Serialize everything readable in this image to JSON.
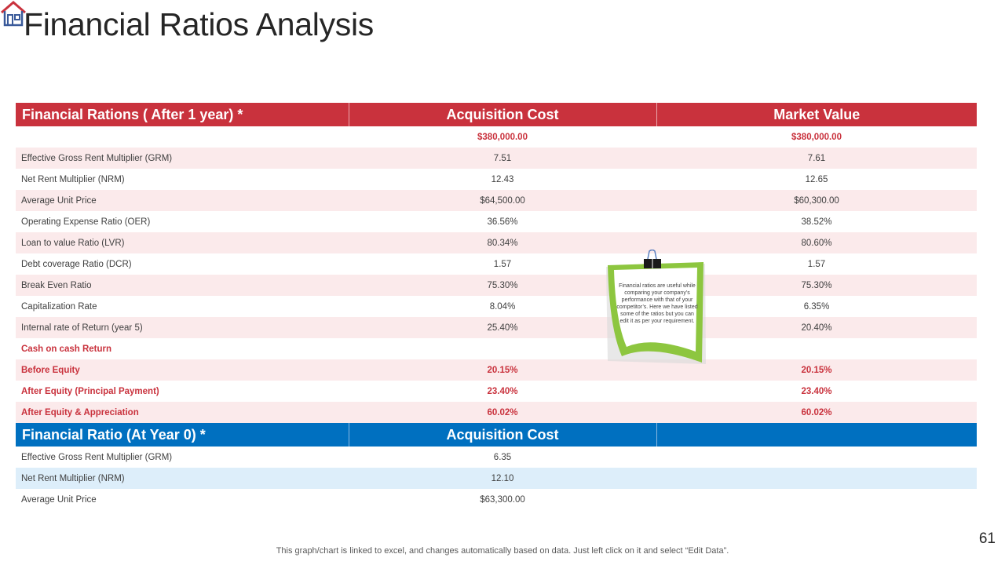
{
  "title": "Financial Ratios Analysis",
  "table1": {
    "headers": [
      "Financial Rations ( After 1 year) *",
      "Acquisition Cost",
      "Market Value"
    ],
    "rows": [
      {
        "label": "",
        "acq": "$380,000.00",
        "mkt": "$380,000.00"
      },
      {
        "label": "Effective Gross Rent Multiplier (GRM)",
        "acq": "7.51",
        "mkt": "7.61"
      },
      {
        "label": "Net Rent Multiplier (NRM)",
        "acq": "12.43",
        "mkt": "12.65"
      },
      {
        "label": "Average Unit Price",
        "acq": "$64,500.00",
        "mkt": "$60,300.00"
      },
      {
        "label": "Operating Expense Ratio (OER)",
        "acq": "36.56%",
        "mkt": "38.52%"
      },
      {
        "label": "Loan to value Ratio (LVR)",
        "acq": "80.34%",
        "mkt": "80.60%"
      },
      {
        "label": "Debt coverage Ratio (DCR)",
        "acq": "1.57",
        "mkt": "1.57"
      },
      {
        "label": "Break Even Ratio",
        "acq": "75.30%",
        "mkt": "75.30%"
      },
      {
        "label": "Capitalization Rate",
        "acq": "8.04%",
        "mkt": "6.35%"
      },
      {
        "label": "Internal rate of Return (year 5)",
        "acq": "25.40%",
        "mkt": "20.40%"
      },
      {
        "label": "Cash on cash Return",
        "acq": "",
        "mkt": ""
      },
      {
        "label": "Before Equity",
        "acq": "20.15%",
        "mkt": "20.15%"
      },
      {
        "label": "After Equity  (Principal Payment)",
        "acq": "23.40%",
        "mkt": "23.40%"
      },
      {
        "label": "After Equity  & Appreciation",
        "acq": "60.02%",
        "mkt": "60.02%"
      }
    ]
  },
  "table2": {
    "headers": [
      "Financial Ratio (At Year 0) *",
      "Acquisition Cost",
      ""
    ],
    "rows": [
      {
        "label": "Effective Gross Rent Multiplier (GRM)",
        "acq": "6.35",
        "mkt": ""
      },
      {
        "label": "Net Rent Multiplier (NRM)",
        "acq": "12.10",
        "mkt": ""
      },
      {
        "label": "Average Unit Price",
        "acq": "$63,300.00",
        "mkt": ""
      }
    ]
  },
  "note": {
    "text": "Financial ratios are useful while comparing your company’s performance with that of your competitor’s. Here we have listed some of the ratios but you can edit it as per your requirement."
  },
  "footer": "This graph/chart is linked to excel,  and changes automatically based on data. Just left click on it and select “Edit Data”.",
  "page_number": "61",
  "colors": {
    "red": "#c9323d",
    "blue": "#0070c0",
    "note_green": "#8dc63f"
  }
}
